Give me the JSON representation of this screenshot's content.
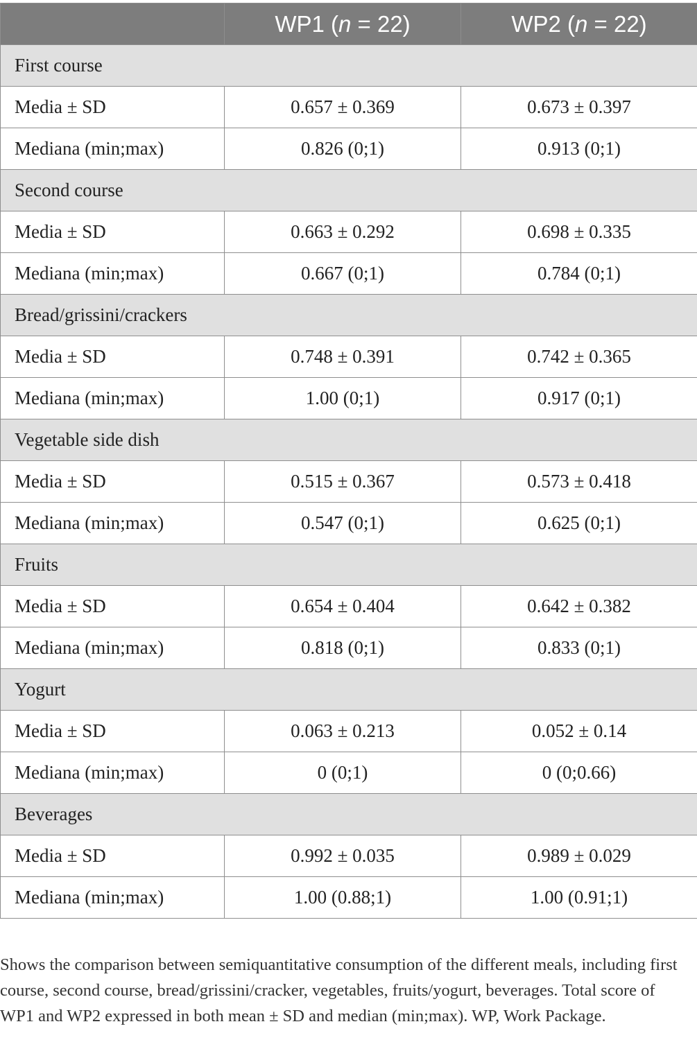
{
  "table": {
    "header": {
      "col1": "",
      "wp1_label": "WP1 (",
      "wp1_n": "n",
      "wp1_count": " = 22)",
      "wp2_label": "WP2 (",
      "wp2_n": "n",
      "wp2_count": " = 22)"
    },
    "sections": [
      {
        "title": "First course",
        "rows": [
          {
            "label": "Media ± SD",
            "wp1": "0.657 ± 0.369",
            "wp2": "0.673 ± 0.397"
          },
          {
            "label": "Mediana (min;max)",
            "wp1": "0.826 (0;1)",
            "wp2": "0.913 (0;1)"
          }
        ]
      },
      {
        "title": "Second course",
        "rows": [
          {
            "label": "Media ± SD",
            "wp1": "0.663 ± 0.292",
            "wp2": "0.698 ± 0.335"
          },
          {
            "label": "Mediana (min;max)",
            "wp1": "0.667 (0;1)",
            "wp2": "0.784 (0;1)"
          }
        ]
      },
      {
        "title": "Bread/grissini/crackers",
        "rows": [
          {
            "label": "Media ± SD",
            "wp1": "0.748 ± 0.391",
            "wp2": "0.742 ± 0.365"
          },
          {
            "label": "Mediana (min;max)",
            "wp1": "1.00 (0;1)",
            "wp2": "0.917 (0;1)"
          }
        ]
      },
      {
        "title": "Vegetable side dish",
        "rows": [
          {
            "label": "Media ± SD",
            "wp1": "0.515 ± 0.367",
            "wp2": "0.573 ± 0.418"
          },
          {
            "label": "Mediana (min;max)",
            "wp1": "0.547 (0;1)",
            "wp2": "0.625 (0;1)"
          }
        ]
      },
      {
        "title": "Fruits",
        "rows": [
          {
            "label": "Media ± SD",
            "wp1": "0.654 ± 0.404",
            "wp2": "0.642 ± 0.382"
          },
          {
            "label": "Mediana (min;max)",
            "wp1": "0.818 (0;1)",
            "wp2": "0.833 (0;1)"
          }
        ]
      },
      {
        "title": "Yogurt",
        "rows": [
          {
            "label": "Media ± SD",
            "wp1": "0.063 ± 0.213",
            "wp2": "0.052 ± 0.14"
          },
          {
            "label": "Mediana (min;max)",
            "wp1": "0 (0;1)",
            "wp2": "0 (0;0.66)"
          }
        ]
      },
      {
        "title": "Beverages",
        "rows": [
          {
            "label": "Media ± SD",
            "wp1": "0.992 ± 0.035",
            "wp2": "0.989 ± 0.029"
          },
          {
            "label": "Mediana (min;max)",
            "wp1": "1.00 (0.88;1)",
            "wp2": "1.00 (0.91;1)"
          }
        ]
      }
    ]
  },
  "footnote": "Shows the comparison between semiquantitative consumption of the different meals, including first course, second course, bread/grissini/cracker, vegetables, fruits/yogurt, beverages. Total score of WP1 and WP2 expressed in both mean ± SD and median (min;max). WP, Work Package.",
  "colors": {
    "header_bg": "#7d7d7d",
    "section_bg": "#e0e0e0",
    "border": "#8e8e8e"
  }
}
